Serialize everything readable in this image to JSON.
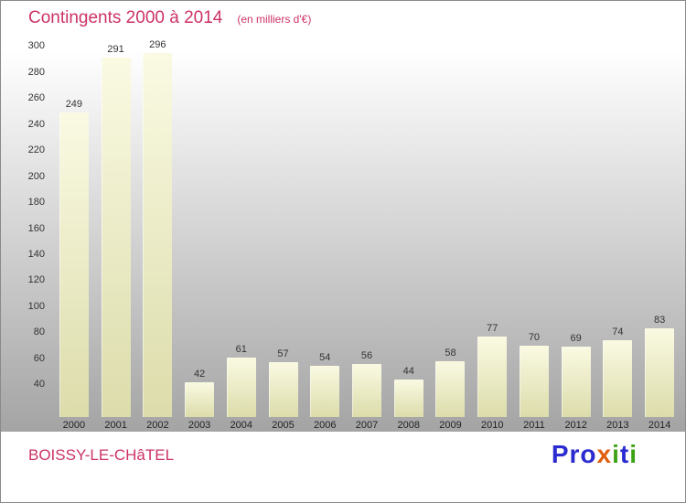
{
  "header": {
    "title": "Contingents 2000 à 2014",
    "subtitle": "(en milliers d'€)"
  },
  "chart_data": {
    "type": "bar",
    "title": "Contingents 2000 à 2014",
    "subtitle": "(en milliers d'€)",
    "categories": [
      "2000",
      "2001",
      "2002",
      "2003",
      "2004",
      "2005",
      "2006",
      "2007",
      "2008",
      "2009",
      "2010",
      "2011",
      "2012",
      "2013",
      "2014"
    ],
    "values": [
      249,
      291,
      296,
      42,
      61,
      57,
      54,
      56,
      44,
      58,
      77,
      70,
      69,
      74,
      83
    ],
    "ylim": [
      15,
      305
    ],
    "yticks": [
      40,
      60,
      80,
      100,
      120,
      140,
      160,
      180,
      200,
      220,
      240,
      260,
      280,
      300
    ],
    "grid": false,
    "value_labels": true,
    "legend": "none"
  },
  "colors": {
    "title": "#cc3366",
    "bar_top": "#fafae3",
    "bar_bottom": "#dcdcab",
    "axis_text": "#333333",
    "location_text": "#cc3366"
  },
  "footer": {
    "location": "BOISSY-LE-CHâTEL",
    "logo_letters": [
      {
        "ch": "P",
        "color": "#2b2bd0"
      },
      {
        "ch": "r",
        "color": "#2b2bd0"
      },
      {
        "ch": "o",
        "color": "#2b2bd0"
      },
      {
        "ch": "x",
        "color": "#e05f10"
      },
      {
        "ch": "i",
        "color": "#3da114"
      },
      {
        "ch": "t",
        "color": "#2b2bd0"
      },
      {
        "ch": "i",
        "color": "#3da114"
      }
    ]
  }
}
